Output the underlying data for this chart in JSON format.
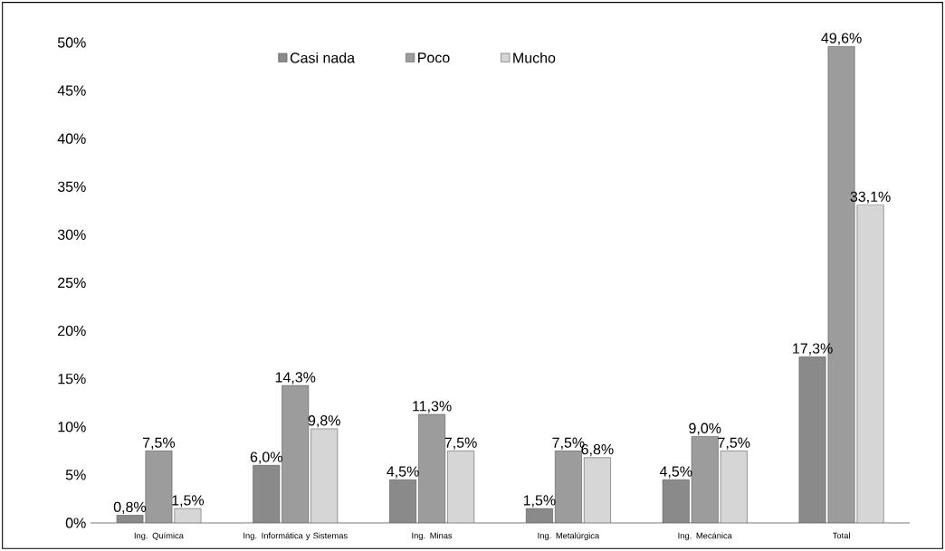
{
  "chart_data": {
    "type": "bar",
    "categories": [
      "Ing. Química",
      "Ing. Informática y Sistemas",
      "Ing. Minas",
      "Ing. Metalúrgica",
      "Ing. Mecánica",
      "Total"
    ],
    "series": [
      {
        "name": "Casi nada",
        "color": "#8a8a8a",
        "values": [
          0.8,
          6.0,
          4.5,
          1.5,
          4.5,
          17.3
        ],
        "value_labels": [
          "0,8%",
          "6,0%",
          "4,5%",
          "1,5%",
          "4,5%",
          "17,3%"
        ]
      },
      {
        "name": "Poco",
        "color": "#9c9c9c",
        "values": [
          7.5,
          14.3,
          11.3,
          7.5,
          9.0,
          49.6
        ],
        "value_labels": [
          "7,5%",
          "14,3%",
          "11,3%",
          "7,5%",
          "9,0%",
          "49,6%"
        ]
      },
      {
        "name": "Mucho",
        "color": "#d6d6d6",
        "values": [
          1.5,
          9.8,
          7.5,
          6.8,
          7.5,
          33.1
        ],
        "value_labels": [
          "1,5%",
          "9,8%",
          "7,5%",
          "6,8%",
          "7,5%",
          "33,1%"
        ]
      }
    ],
    "ylim": [
      0,
      50
    ],
    "yticks": [
      {
        "value": 0,
        "label": "0%"
      },
      {
        "value": 5,
        "label": "5%"
      },
      {
        "value": 10,
        "label": "10%"
      },
      {
        "value": 15,
        "label": "15%"
      },
      {
        "value": 20,
        "label": "20%"
      },
      {
        "value": 25,
        "label": "25%"
      },
      {
        "value": 30,
        "label": "30%"
      },
      {
        "value": 35,
        "label": "35%"
      },
      {
        "value": 40,
        "label": "40%"
      },
      {
        "value": 45,
        "label": "45%"
      },
      {
        "value": 50,
        "label": "50%"
      }
    ],
    "legend": "top",
    "grid": false
  }
}
